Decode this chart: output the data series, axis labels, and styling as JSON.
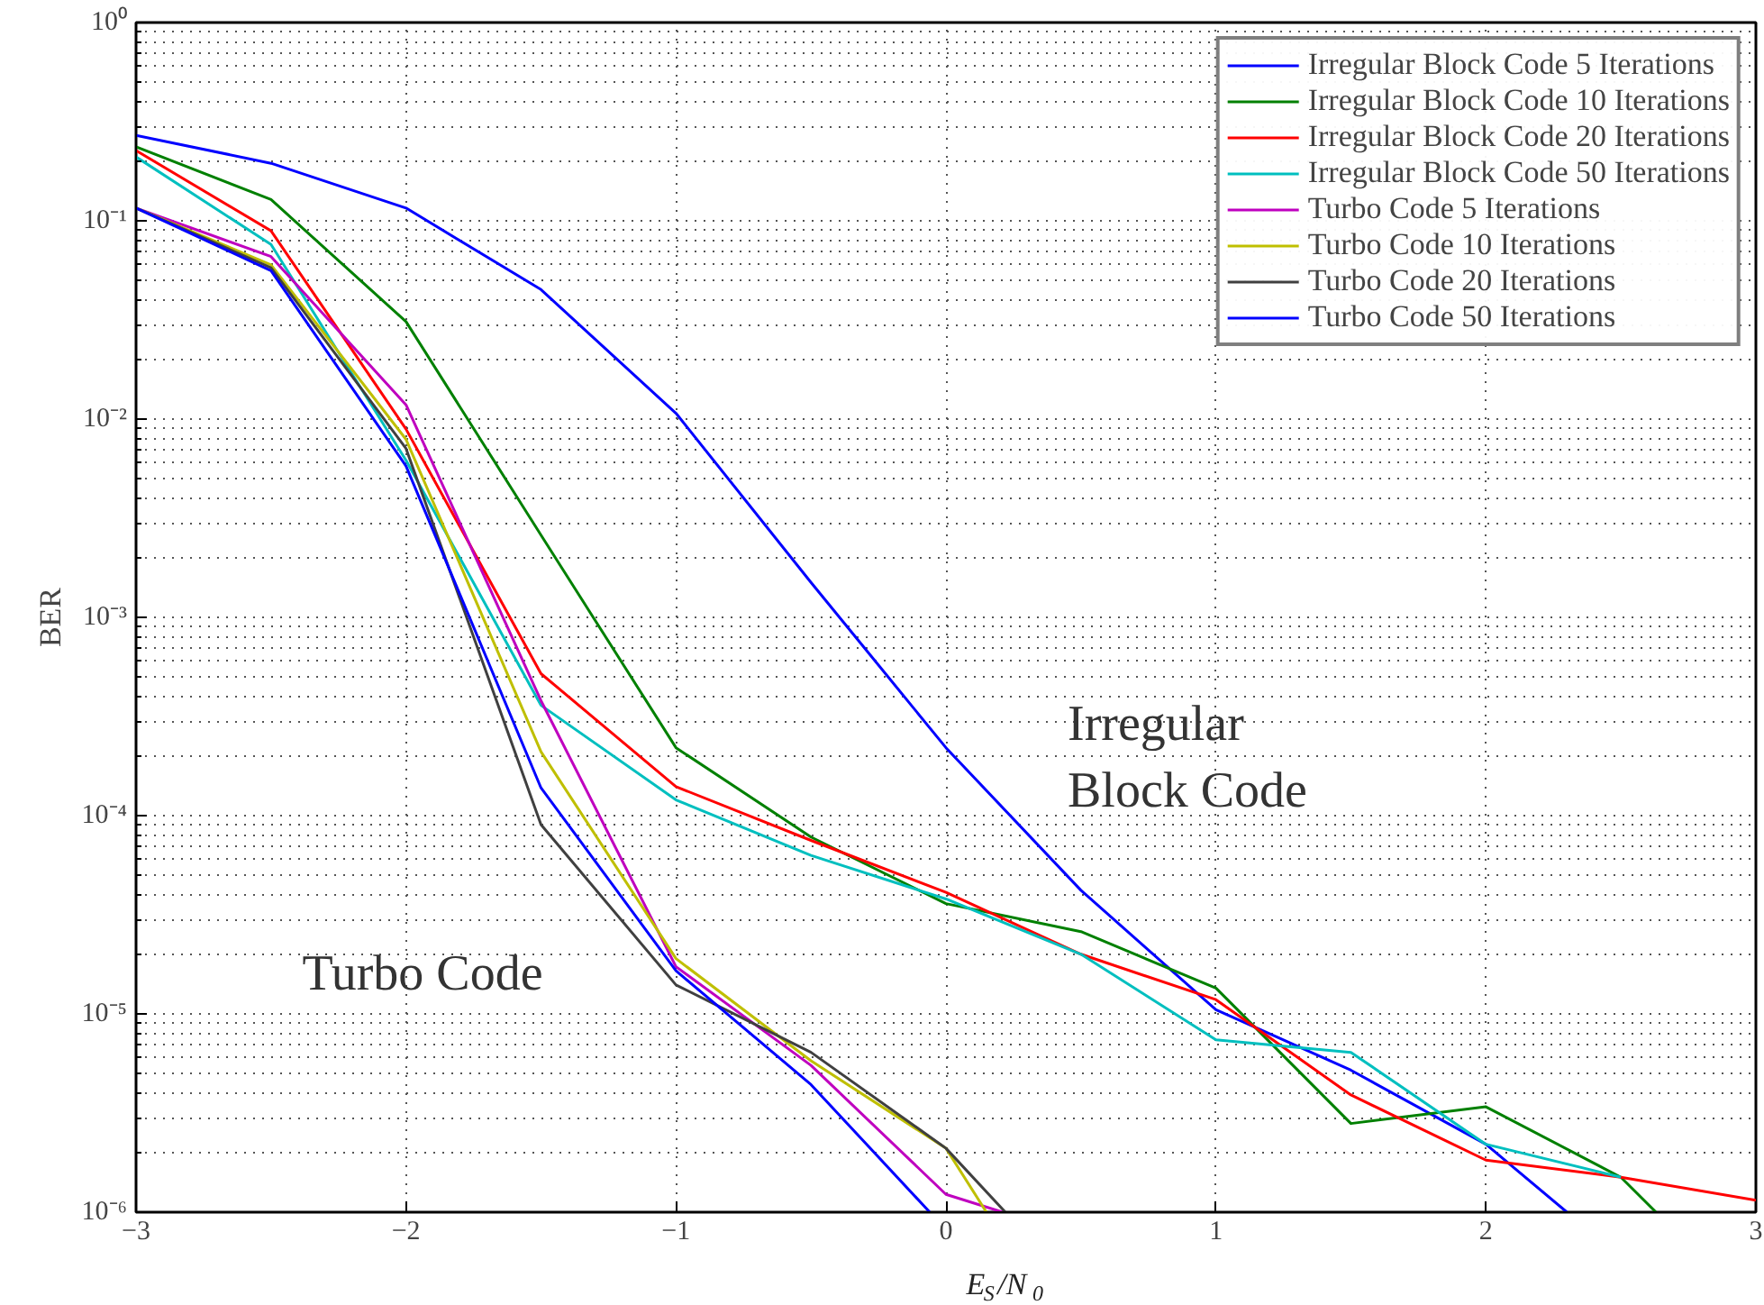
{
  "chart_data": {
    "type": "line",
    "xlabel": "E$_{S}$/N$_{0}$",
    "ylabel": "BER",
    "log": "y",
    "grid": true,
    "legend": "top right",
    "line_style": "solid",
    "marker": "none",
    "xlim": [
      -3,
      3
    ],
    "xticks": [
      {
        "value": -3,
        "label": "−3"
      },
      {
        "value": -2,
        "label": "−2"
      },
      {
        "value": -1,
        "label": "−1"
      },
      0,
      1,
      2,
      3
    ],
    "ylim": [
      1e-06,
      1
    ],
    "yticks": [
      {
        "value": 1e-06,
        "label": "10⁻⁶"
      },
      {
        "value": 1e-05,
        "label": "10⁻⁵"
      },
      {
        "value": 0.0001,
        "label": "10⁻⁴"
      },
      {
        "value": 0.001,
        "label": "10⁻³"
      },
      {
        "value": 0.01,
        "label": "10⁻²"
      },
      {
        "value": 0.1,
        "label": "10⁻¹"
      },
      {
        "value": 1,
        "label": "10⁰"
      }
    ],
    "series": [
      {
        "name": "Irregular Block Code 5 Iterations",
        "color": "#0000ff",
        "x": [
          -3,
          -2.5,
          -2,
          -1.5,
          -1,
          -0.5,
          0,
          0.5,
          1,
          1.5,
          2,
          2.3
        ],
        "values": [
          0.27,
          0.195,
          0.116,
          0.045,
          0.0107,
          0.0015,
          0.00022,
          4.2e-05,
          1.05e-05,
          5.2e-06,
          2.2e-06,
          1e-06
        ]
      },
      {
        "name": "Irregular Block Code 10 Iterations",
        "color": "#008000",
        "x": [
          -3,
          -2.5,
          -2,
          -1.5,
          -1,
          -0.5,
          0,
          0.5,
          1,
          1.5,
          2,
          2.5,
          2.63
        ],
        "values": [
          0.236,
          0.128,
          0.031,
          0.0026,
          0.00022,
          7.8e-05,
          3.6e-05,
          2.6e-05,
          1.35e-05,
          2.8e-06,
          3.4e-06,
          1.5e-06,
          1e-06
        ]
      },
      {
        "name": "Irregular Block Code 20 Iterations",
        "color": "#ff0000",
        "x": [
          -3,
          -2.5,
          -2,
          -1.5,
          -1,
          -0.5,
          0,
          0.5,
          1,
          1.5,
          2,
          2.5,
          3
        ],
        "values": [
          0.226,
          0.089,
          0.0089,
          0.00052,
          0.00014,
          7.5e-05,
          4.1e-05,
          2e-05,
          1.18e-05,
          3.9e-06,
          1.83e-06,
          1.5e-06,
          1.15e-06
        ]
      },
      {
        "name": "Irregular Block Code 50 Iterations",
        "color": "#00bfbf",
        "x": [
          -3,
          -2.5,
          -2,
          -1.5,
          -1,
          -0.5,
          0,
          0.5,
          1,
          1.5,
          2,
          2.5
        ],
        "values": [
          0.21,
          0.076,
          0.0062,
          0.00036,
          0.00012,
          6.3e-05,
          3.8e-05,
          2e-05,
          7.4e-06,
          6.4e-06,
          2.2e-06,
          1.5e-06
        ]
      },
      {
        "name": "Turbo Code 5 Iterations",
        "color": "#bf00bf",
        "x": [
          -3,
          -2.5,
          -2,
          -1.5,
          -1,
          -0.5,
          0,
          0.21
        ],
        "values": [
          0.116,
          0.066,
          0.0118,
          0.00038,
          1.73e-05,
          5.5e-06,
          1.23e-06,
          1e-06
        ]
      },
      {
        "name": "Turbo Code 10 Iterations",
        "color": "#bfbf00",
        "x": [
          -3,
          -2.5,
          -2,
          -1.5,
          -1,
          -0.5,
          0,
          0.15
        ],
        "values": [
          0.116,
          0.06,
          0.0079,
          0.00021,
          1.9e-05,
          5.8e-06,
          2.1e-06,
          1e-06
        ]
      },
      {
        "name": "Turbo Code 20 Iterations",
        "color": "#404040",
        "x": [
          -3,
          -2.5,
          -2,
          -1.5,
          -1,
          -0.5,
          0,
          0.22
        ],
        "values": [
          0.116,
          0.058,
          0.0071,
          9e-05,
          1.4e-05,
          6.4e-06,
          2.1e-06,
          1e-06
        ]
      },
      {
        "name": "Turbo Code 50 Iterations",
        "color": "#0000ff",
        "x": [
          -3,
          -2.5,
          -2,
          -1.5,
          -1,
          -0.5,
          -0.06
        ],
        "values": [
          0.116,
          0.056,
          0.0058,
          0.000138,
          1.65e-05,
          4.4e-06,
          1e-06
        ]
      }
    ],
    "annotations": [
      "Turbo Code",
      "Irregular\nBlock Code"
    ]
  }
}
